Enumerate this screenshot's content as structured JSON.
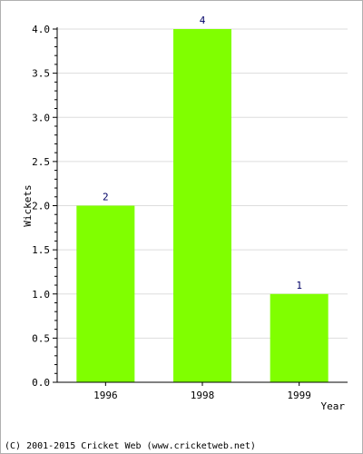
{
  "footer": {
    "copyright": "(C) 2001-2015 Cricket Web (www.cricketweb.net)"
  },
  "colors": {
    "bar": "#80ff00",
    "grid": "#dddddd",
    "axis": "#000000",
    "data_label": "#000066"
  },
  "chart_data": {
    "type": "bar",
    "title": "",
    "xlabel": "Year",
    "ylabel": "Wickets",
    "categories": [
      "1996",
      "1998",
      "1999"
    ],
    "values": [
      2,
      4,
      1
    ],
    "data_labels": [
      "2",
      "4",
      "1"
    ],
    "ylim": [
      0,
      4
    ],
    "yticks": [
      "0.0",
      "0.5",
      "1.0",
      "1.5",
      "2.0",
      "2.5",
      "3.0",
      "3.5",
      "4.0"
    ],
    "grid": true,
    "legend": "none"
  }
}
